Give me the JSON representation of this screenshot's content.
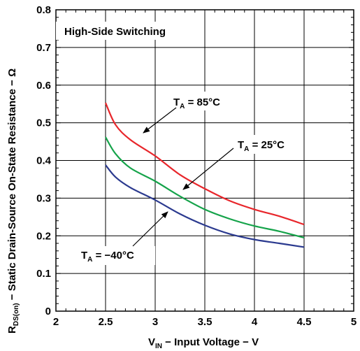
{
  "chart_data": {
    "type": "line",
    "title": "High-Side Switching",
    "xlabel_main": "V",
    "xlabel_sub": "IN",
    "xlabel_rest": " − Input Voltage − V",
    "ylabel_main": "R",
    "ylabel_sub": "DS(on)",
    "ylabel_rest": " − Static Drain-Source On-State Resistance − Ω",
    "xlim": [
      2,
      5
    ],
    "ylim": [
      0,
      0.8
    ],
    "x_ticks": [
      2,
      2.5,
      3,
      3.5,
      4,
      4.5,
      5
    ],
    "x_tick_labels": [
      "2",
      "2.5",
      "3",
      "3.5",
      "4",
      "4.5",
      "5"
    ],
    "y_ticks": [
      0,
      0.1,
      0.2,
      0.3,
      0.4,
      0.5,
      0.6,
      0.7,
      0.8
    ],
    "y_tick_labels": [
      "0",
      "0.1",
      "0.2",
      "0.3",
      "0.4",
      "0.5",
      "0.6",
      "0.7",
      "0.8"
    ],
    "minor_y_ticks": true,
    "minor_x_ticks": true,
    "series": [
      {
        "label_main": "T",
        "label_sub": "A",
        "label_rest": " = 85°C",
        "color": "#e8262b",
        "x": [
          2.5,
          2.6,
          2.75,
          3.0,
          3.25,
          3.5,
          3.75,
          4.0,
          4.25,
          4.5
        ],
        "y": [
          0.553,
          0.495,
          0.455,
          0.412,
          0.362,
          0.325,
          0.293,
          0.27,
          0.252,
          0.23
        ]
      },
      {
        "label_main": "T",
        "label_sub": "A",
        "label_rest": " = 25°C",
        "color": "#15a34a",
        "x": [
          2.5,
          2.6,
          2.75,
          3.0,
          3.25,
          3.5,
          3.75,
          4.0,
          4.25,
          4.5
        ],
        "y": [
          0.462,
          0.418,
          0.38,
          0.345,
          0.305,
          0.27,
          0.245,
          0.226,
          0.212,
          0.195
        ]
      },
      {
        "label_main": "T",
        "label_sub": "A",
        "label_rest": " = −40°C",
        "color": "#2b3a8f",
        "x": [
          2.5,
          2.6,
          2.75,
          3.0,
          3.25,
          3.5,
          3.75,
          4.0,
          4.25,
          4.5
        ],
        "y": [
          0.388,
          0.356,
          0.328,
          0.295,
          0.258,
          0.228,
          0.205,
          0.19,
          0.18,
          0.17
        ]
      }
    ]
  }
}
